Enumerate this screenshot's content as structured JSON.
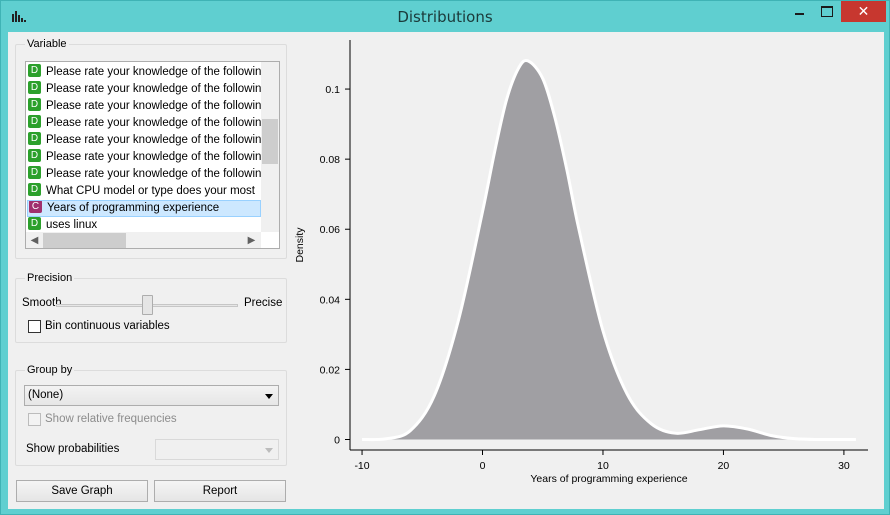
{
  "window": {
    "title": "Distributions",
    "close_glyph": "✕"
  },
  "variable": {
    "title": "Variable",
    "items": [
      {
        "type": "D",
        "label": "Please rate your knowledge of the following"
      },
      {
        "type": "D",
        "label": "Please rate your knowledge of the following"
      },
      {
        "type": "D",
        "label": "Please rate your knowledge of the following"
      },
      {
        "type": "D",
        "label": "Please rate your knowledge of the following"
      },
      {
        "type": "D",
        "label": "Please rate your knowledge of the following"
      },
      {
        "type": "D",
        "label": "Please rate your knowledge of the following"
      },
      {
        "type": "D",
        "label": "Please rate your knowledge of the following"
      },
      {
        "type": "D",
        "label": "What CPU model or type does your most"
      },
      {
        "type": "C",
        "label": "Years of programming experience",
        "selected": true
      },
      {
        "type": "D",
        "label": "uses linux"
      }
    ]
  },
  "precision": {
    "title": "Precision",
    "smooth_label": "Smooth",
    "precise_label": "Precise",
    "slider_value": 0.5,
    "bin_label": "Bin continuous variables",
    "bin_checked": false
  },
  "group_by": {
    "title": "Group by",
    "selected": "(None)",
    "relative_label": "Show relative frequencies",
    "probabilities_label": "Show probabilities",
    "probabilities_value": ""
  },
  "buttons": {
    "save_graph": "Save Graph",
    "report": "Report"
  },
  "chart_data": {
    "type": "area",
    "xlabel": "Years of programming experience",
    "ylabel": "Density",
    "xlim": [
      -11,
      32
    ],
    "ylim": [
      -0.003,
      0.114
    ],
    "xticks": [
      -10,
      0,
      10,
      20,
      30
    ],
    "yticks": [
      0,
      0.02,
      0.04,
      0.06,
      0.08,
      0.1
    ],
    "yticklabels": [
      "0",
      "0.02",
      "0.04",
      "0.06",
      "0.08",
      "0.1"
    ],
    "fill": "#a09fa3",
    "line": "#ffffff",
    "x": [
      -10,
      -8,
      -6,
      -4,
      -2,
      0,
      1,
      2,
      3,
      3.8,
      5,
      6,
      7,
      8,
      10,
      12,
      14,
      16,
      18,
      20,
      22,
      24,
      26,
      28,
      31
    ],
    "y": [
      0,
      0.0002,
      0.0025,
      0.0125,
      0.034,
      0.065,
      0.082,
      0.097,
      0.106,
      0.108,
      0.103,
      0.092,
      0.077,
      0.06,
      0.031,
      0.013,
      0.0045,
      0.0018,
      0.0028,
      0.0039,
      0.003,
      0.0011,
      0.0002,
      0,
      0
    ]
  }
}
